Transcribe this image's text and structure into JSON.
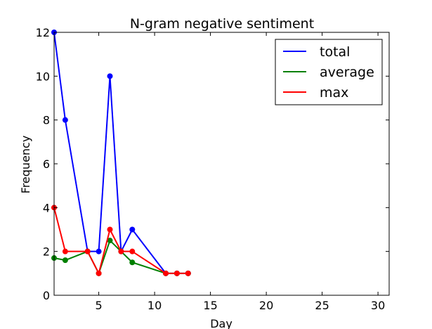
{
  "chart_data": {
    "type": "line",
    "title": "N-gram negative sentiment",
    "xlabel": "Day",
    "ylabel": "Frequency",
    "xlim": [
      1,
      31
    ],
    "ylim": [
      0,
      12
    ],
    "xticks": [
      5,
      10,
      15,
      20,
      25,
      30
    ],
    "yticks": [
      0,
      2,
      4,
      6,
      8,
      10,
      12
    ],
    "grid": false,
    "legend_position": "top-right",
    "series": [
      {
        "name": "total",
        "color": "#0000ff",
        "x": [
          1,
          2,
          4,
          5,
          6,
          7,
          8,
          11,
          12,
          13
        ],
        "y": [
          12,
          8,
          2,
          2,
          10,
          2,
          3,
          1,
          1,
          1
        ]
      },
      {
        "name": "average",
        "color": "#008000",
        "x": [
          1,
          2,
          4,
          5,
          6,
          7,
          8,
          11,
          12,
          13
        ],
        "y": [
          1.7,
          1.6,
          2,
          1,
          2.5,
          2,
          1.5,
          1,
          1,
          1
        ]
      },
      {
        "name": "max",
        "color": "#ff0000",
        "x": [
          1,
          2,
          4,
          5,
          6,
          7,
          8,
          11,
          12,
          13
        ],
        "y": [
          4,
          2,
          2,
          1,
          3,
          2,
          2,
          1,
          1,
          1
        ]
      }
    ]
  }
}
